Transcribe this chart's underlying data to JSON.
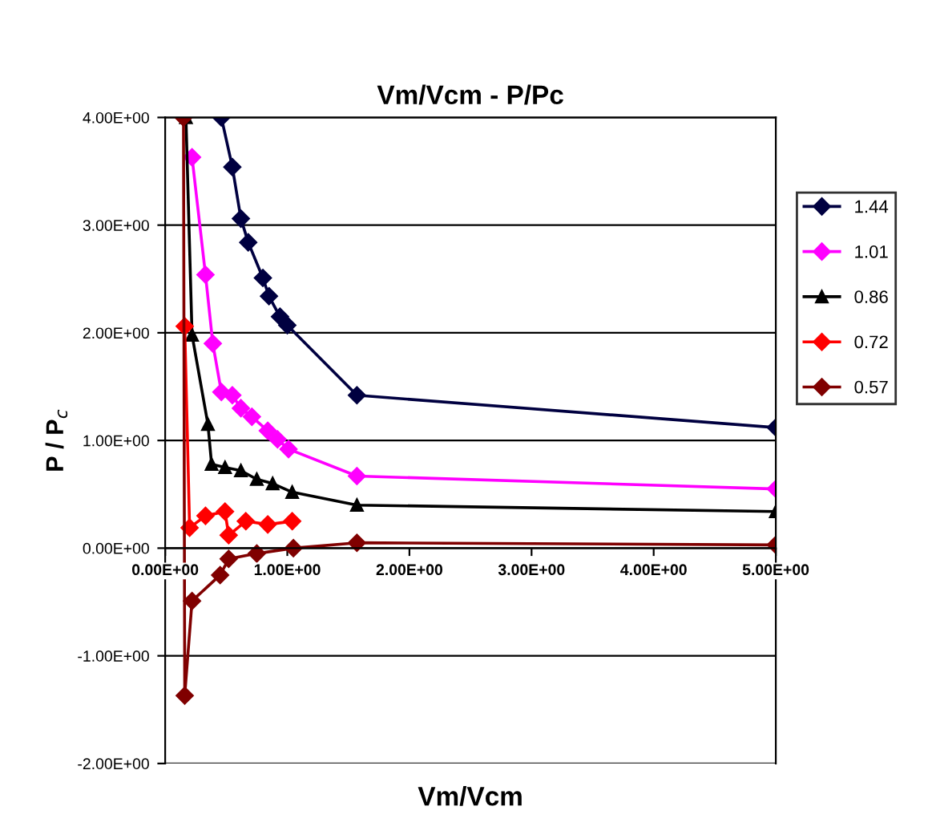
{
  "chart_data": {
    "type": "line",
    "title": "Vm/Vcm - P/Pc",
    "xlabel": "Vm/Vcm",
    "ylabel": "P / P$_{c}$",
    "xlim": [
      0,
      5
    ],
    "xticks": [
      {
        "value": 0,
        "label": "0.00E+00"
      },
      {
        "value": 1,
        "label": "1.00E+00"
      },
      {
        "value": 2,
        "label": "2.00E+00"
      },
      {
        "value": 3,
        "label": "3.00E+00"
      },
      {
        "value": 4,
        "label": "4.00E+00"
      },
      {
        "value": 5,
        "label": "5.00E+00"
      }
    ],
    "ylim": [
      -2,
      4
    ],
    "yticks": [
      {
        "value": -2,
        "label": "-2.00E+00"
      },
      {
        "value": -1,
        "label": "-1.00E+00"
      },
      {
        "value": 0,
        "label": "0.00E+00"
      },
      {
        "value": 1,
        "label": "1.00E+00"
      },
      {
        "value": 2,
        "label": "2.00E+00"
      },
      {
        "value": 3,
        "label": "3.00E+00"
      },
      {
        "value": 4,
        "label": "4.00E+00"
      }
    ],
    "grid": "y",
    "legend": "right",
    "line_style": "solid",
    "series": [
      {
        "name": "1.44",
        "color": "#000040",
        "marker": "diamond",
        "x": [
          0.46,
          0.55,
          0.62,
          0.68,
          0.8,
          0.85,
          0.94,
          1.0,
          1.57,
          5.0
        ],
        "values": [
          4.0,
          3.54,
          3.06,
          2.84,
          2.51,
          2.34,
          2.15,
          2.07,
          1.42,
          1.12
        ]
      },
      {
        "name": "1.01",
        "color": "#ff00ff",
        "marker": "diamond",
        "x": [
          0.22,
          0.33,
          0.39,
          0.46,
          0.55,
          0.62,
          0.71,
          0.84,
          0.92,
          1.01,
          1.57,
          5.0
        ],
        "values": [
          3.63,
          2.54,
          1.9,
          1.45,
          1.42,
          1.3,
          1.22,
          1.09,
          1.01,
          0.92,
          0.67,
          0.55
        ]
      },
      {
        "name": "0.86",
        "color": "#000000",
        "marker": "triangle",
        "x": [
          0.17,
          0.22,
          0.35,
          0.38,
          0.49,
          0.62,
          0.75,
          0.88,
          1.04,
          1.57,
          5.0
        ],
        "values": [
          4.0,
          1.98,
          1.15,
          0.78,
          0.75,
          0.72,
          0.64,
          0.6,
          0.52,
          0.4,
          0.34
        ]
      },
      {
        "name": "0.72",
        "color": "#ff0000",
        "marker": "diamond",
        "x": [
          0.16,
          0.2,
          0.33,
          0.49,
          0.52,
          0.66,
          0.84,
          1.04
        ],
        "values": [
          2.06,
          0.19,
          0.3,
          0.34,
          0.12,
          0.25,
          0.22,
          0.25
        ]
      },
      {
        "name": "0.57",
        "color": "#800000",
        "marker": "diamond",
        "x": [
          0.15,
          0.16,
          0.22,
          0.45,
          0.52,
          0.75,
          1.05,
          1.57,
          5.0
        ],
        "values": [
          4.0,
          -1.37,
          -0.49,
          -0.25,
          -0.1,
          -0.05,
          0.0,
          0.05,
          0.03
        ]
      }
    ]
  }
}
